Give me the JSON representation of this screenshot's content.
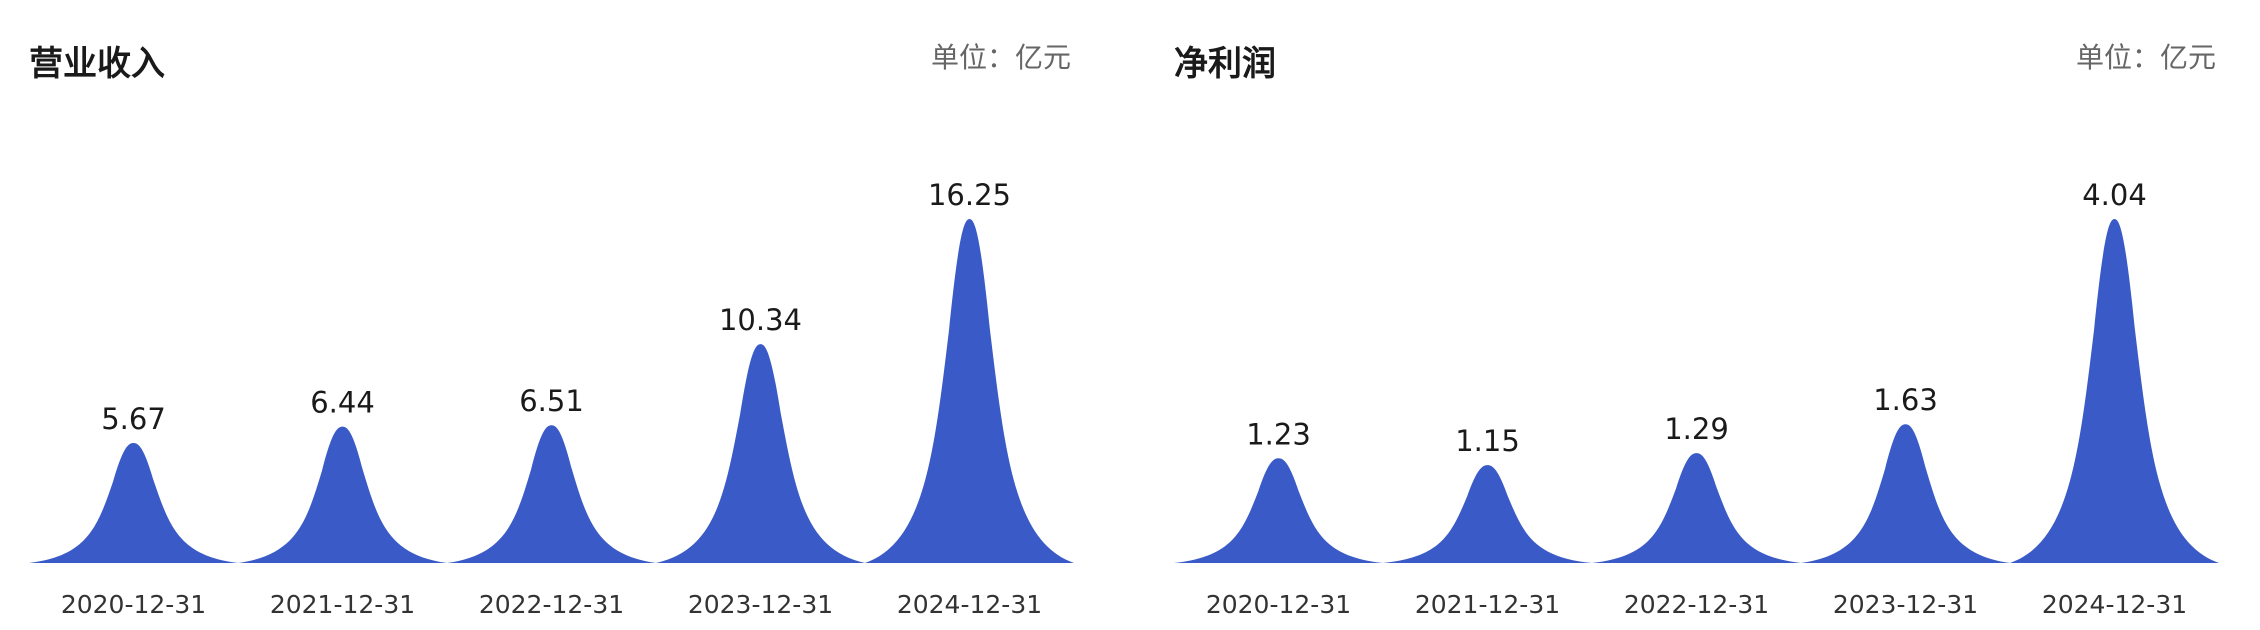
{
  "chart_data": [
    {
      "type": "area",
      "title": "营业收入",
      "unit": "单位：亿元",
      "categories": [
        "2020-12-31",
        "2021-12-31",
        "2022-12-31",
        "2023-12-31",
        "2024-12-31"
      ],
      "values": [
        5.67,
        6.44,
        6.51,
        10.34,
        16.25
      ],
      "value_labels": [
        "5.67",
        "6.44",
        "6.51",
        "10.34",
        "16.25"
      ],
      "ylim": [
        0,
        16.25
      ],
      "grid": false,
      "color": "#3a5bc7"
    },
    {
      "type": "area",
      "title": "净利润",
      "unit": "单位：亿元",
      "categories": [
        "2020-12-31",
        "2021-12-31",
        "2022-12-31",
        "2023-12-31",
        "2024-12-31"
      ],
      "values": [
        1.23,
        1.15,
        1.29,
        1.63,
        4.04
      ],
      "value_labels": [
        "1.23",
        "1.15",
        "1.29",
        "1.63",
        "4.04"
      ],
      "ylim": [
        0,
        4.04
      ],
      "grid": false,
      "color": "#3a5bc7"
    }
  ]
}
